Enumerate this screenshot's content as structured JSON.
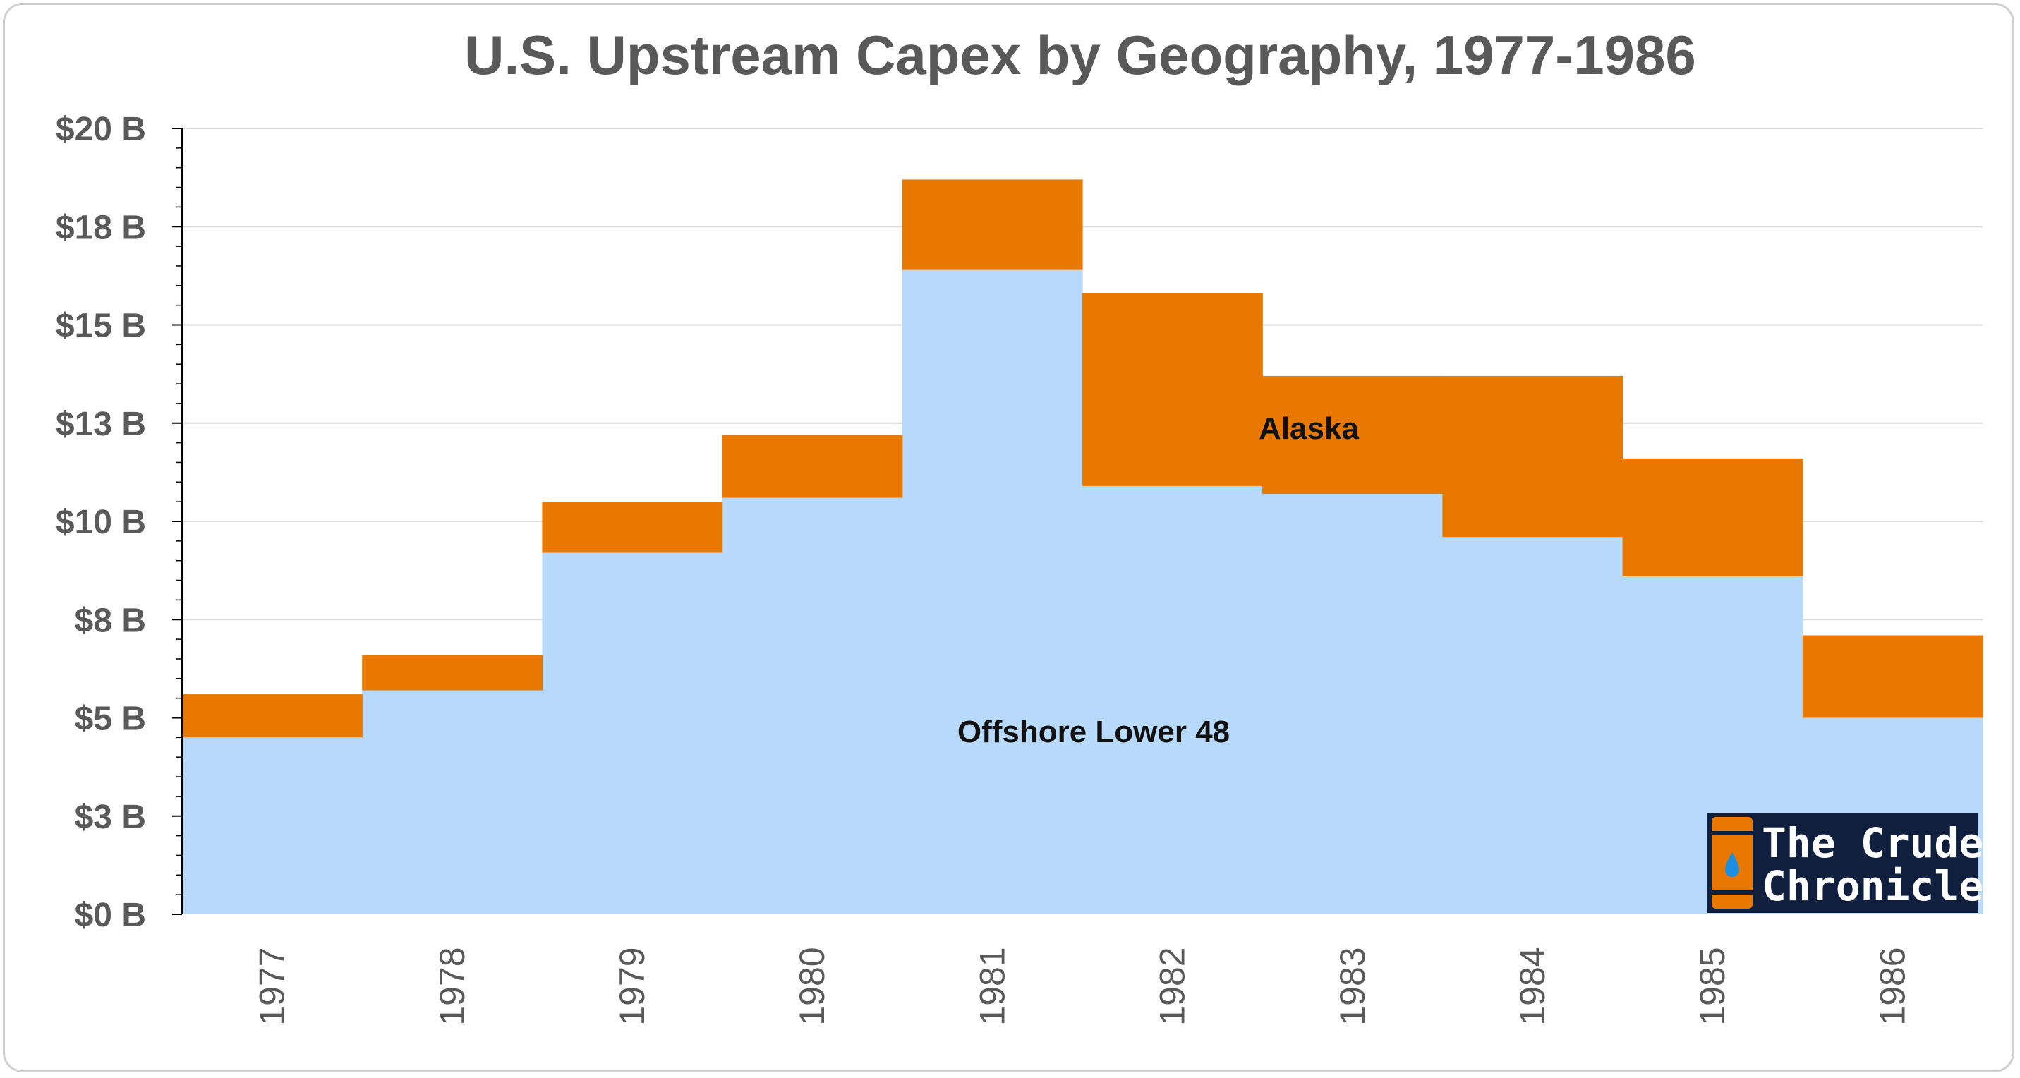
{
  "chart_data": {
    "type": "area",
    "title": "U.S. Upstream Capex by Geography, 1977-1986",
    "categories": [
      "1977",
      "1978",
      "1979",
      "1980",
      "1981",
      "1982",
      "1983",
      "1984",
      "1985",
      "1986"
    ],
    "series": [
      {
        "name": "Offshore Lower 48",
        "color": "#b7dafc",
        "values": [
          4.5,
          5.7,
          9.2,
          10.6,
          16.4,
          10.9,
          10.7,
          9.6,
          8.6,
          5.0
        ]
      },
      {
        "name": "Alaska",
        "color": "#e87800",
        "values": [
          1.1,
          0.9,
          1.3,
          1.6,
          2.3,
          4.9,
          3.0,
          4.1,
          3.0,
          2.1
        ]
      }
    ],
    "stacked": true,
    "step": true,
    "y_ticks": [
      "$0 B",
      "$3 B",
      "$5 B",
      "$8 B",
      "$10 B",
      "$13 B",
      "$15 B",
      "$18 B",
      "$20 B"
    ],
    "ylim": [
      0,
      20
    ],
    "grid": true,
    "xlabel": "",
    "ylabel": ""
  },
  "logo": {
    "line1": "The Crude",
    "line2": "Chronicles",
    "background": "#0f1f3d",
    "barrel_color": "#e87800",
    "drop_color": "#1d8fe0"
  }
}
